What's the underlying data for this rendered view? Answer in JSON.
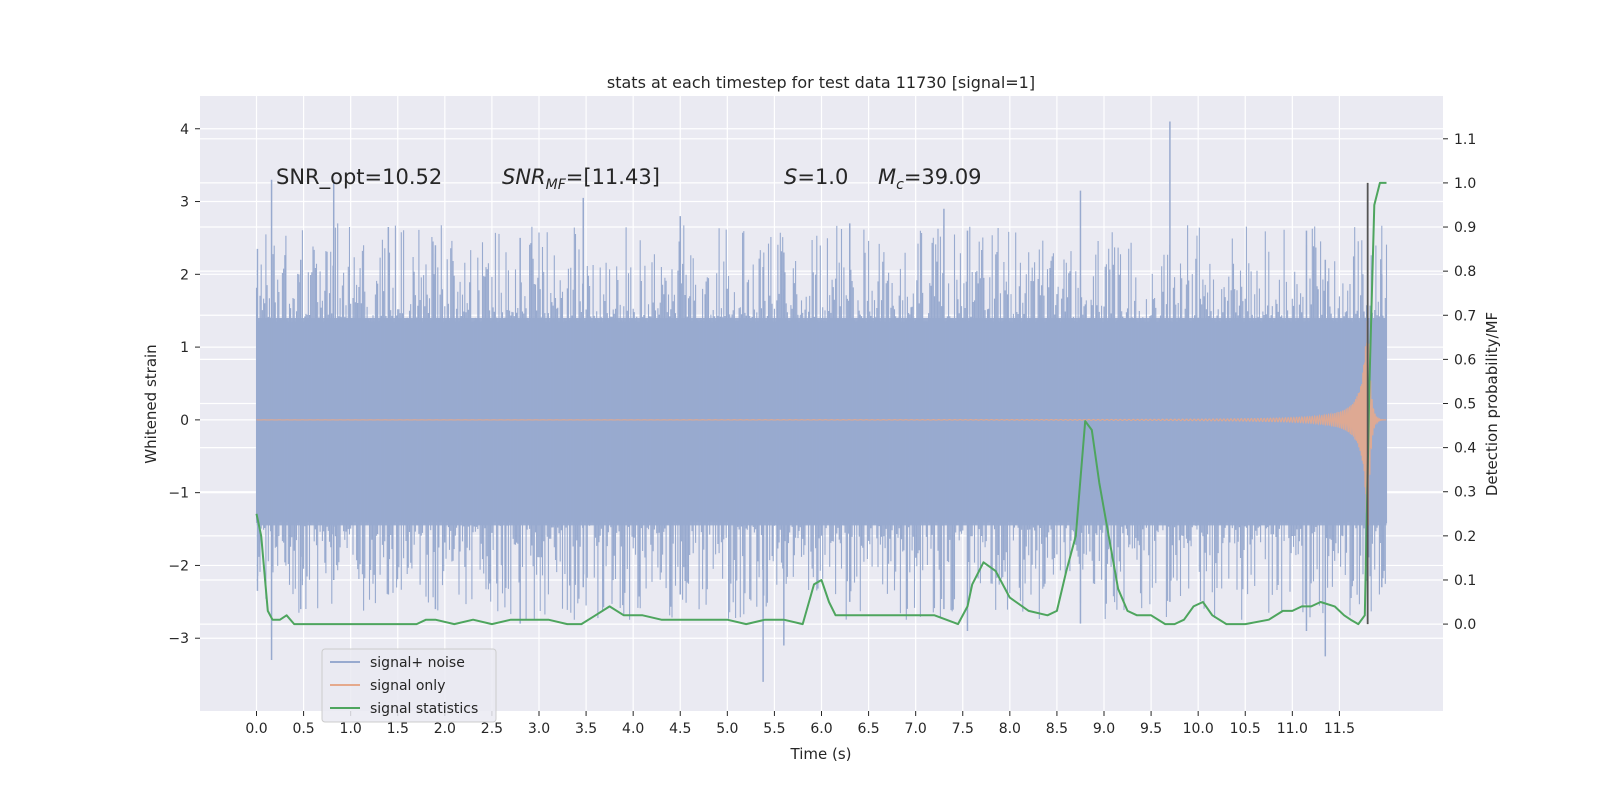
{
  "chart_data": {
    "type": "line",
    "title": "stats at each timestep for test data 11730 [signal=1]",
    "xlabel": "Time (s)",
    "ylabel_left": "Whitened strain",
    "ylabel_right": "Detection probability/MF",
    "xlim": [
      -0.6,
      12.6
    ],
    "ylim_left": [
      -4.0,
      4.45
    ],
    "ylim_right": [
      -0.197,
      1.197
    ],
    "x_ticks": [
      0.0,
      0.5,
      1.0,
      1.5,
      2.0,
      2.5,
      3.0,
      3.5,
      4.0,
      4.5,
      5.0,
      5.5,
      6.0,
      6.5,
      7.0,
      7.5,
      8.0,
      8.5,
      9.0,
      9.5,
      10.0,
      10.5,
      11.0,
      11.5
    ],
    "x_tick_labels": [
      "0.0",
      "0.5",
      "1.0",
      "1.5",
      "2.0",
      "2.5",
      "3.0",
      "3.5",
      "4.0",
      "4.5",
      "5.0",
      "5.5",
      "6.0",
      "6.5",
      "7.0",
      "7.5",
      "8.0",
      "8.5",
      "9.0",
      "9.5",
      "10.0",
      "10.5",
      "11.0",
      "11.5"
    ],
    "y_ticks_left": [
      4,
      3,
      2,
      1,
      0,
      -1,
      -2,
      -3
    ],
    "y_tick_labels_left": [
      "4",
      "3",
      "2",
      "1",
      "0",
      "−1",
      "−2",
      "−3"
    ],
    "y_ticks_right": [
      1.1,
      1.0,
      0.9,
      0.8,
      0.7,
      0.6,
      0.5,
      0.4,
      0.3,
      0.2,
      0.1,
      0.0
    ],
    "y_tick_labels_right": [
      "1.1",
      "1.0",
      "0.9",
      "0.8",
      "0.7",
      "0.6",
      "0.5",
      "0.4",
      "0.3",
      "0.2",
      "0.1",
      "0.0"
    ],
    "grid": true,
    "legend": {
      "placement": "lower-left",
      "entries": [
        {
          "label": "signal+ noise",
          "color": "#98aacf"
        },
        {
          "label": "signal only",
          "color": "#e5a98c"
        },
        {
          "label": "signal statistics",
          "color": "#4ea55e"
        }
      ]
    },
    "annotations": {
      "snr_opt": "SNR_opt=10.52",
      "snr_mf_main": "SNR",
      "snr_mf_sub": "MF",
      "snr_mf_value": "=[11.43]",
      "s_main": "S",
      "s_value": "=1.0",
      "mc_main": "M",
      "mc_sub": "c",
      "mc_value": "=39.09"
    },
    "noise_band": {
      "color": "#98aacf",
      "x_range": [
        0.0,
        12.0
      ],
      "dense_low": -1.45,
      "dense_high": 1.4,
      "spikes": [
        {
          "x": 0.01,
          "low": -2.35,
          "high": 2.35
        },
        {
          "x": 0.16,
          "low": -3.3,
          "high": 3.3
        },
        {
          "x": 0.47,
          "low": -2.6,
          "high": 2.2
        },
        {
          "x": 0.82,
          "low": -2.2,
          "high": 3.3
        },
        {
          "x": 1.4,
          "low": -2.4,
          "high": 2.65
        },
        {
          "x": 1.9,
          "low": -2.6,
          "high": 2.4
        },
        {
          "x": 2.8,
          "low": -2.8,
          "high": 2.5
        },
        {
          "x": 3.47,
          "low": -2.3,
          "high": 3.05
        },
        {
          "x": 4.5,
          "low": -2.4,
          "high": 2.8
        },
        {
          "x": 5.38,
          "low": -3.6,
          "high": 2.1
        },
        {
          "x": 5.6,
          "low": -3.1,
          "high": 2.3
        },
        {
          "x": 6.3,
          "low": -2.5,
          "high": 2.7
        },
        {
          "x": 7.3,
          "low": -2.6,
          "high": 2.9
        },
        {
          "x": 7.55,
          "low": -2.9,
          "high": 2.6
        },
        {
          "x": 8.75,
          "low": -2.8,
          "high": 3.15
        },
        {
          "x": 9.7,
          "low": -2.5,
          "high": 4.1
        },
        {
          "x": 11.15,
          "low": -2.9,
          "high": 2.6
        },
        {
          "x": 11.35,
          "low": -3.25,
          "high": 2.2
        },
        {
          "x": 11.95,
          "low": -2.3,
          "high": 2.0
        }
      ]
    },
    "signal_only": {
      "color": "#e5a98c",
      "x_range": [
        0.0,
        12.0
      ],
      "merger_time": 11.8,
      "peak_amplitude": 2.0
    },
    "signal_statistics": {
      "color": "#4ea55e",
      "x": [
        0.0,
        0.05,
        0.12,
        0.17,
        0.25,
        0.32,
        0.4,
        0.5,
        0.7,
        1.0,
        1.3,
        1.5,
        1.7,
        1.8,
        1.9,
        2.1,
        2.3,
        2.5,
        2.7,
        2.9,
        3.1,
        3.3,
        3.45,
        3.6,
        3.75,
        3.9,
        4.1,
        4.3,
        4.5,
        4.7,
        5.0,
        5.2,
        5.4,
        5.6,
        5.8,
        5.92,
        6.0,
        6.08,
        6.15,
        6.25,
        6.5,
        6.8,
        7.0,
        7.2,
        7.45,
        7.55,
        7.6,
        7.72,
        7.85,
        8.0,
        8.2,
        8.4,
        8.5,
        8.6,
        8.7,
        8.8,
        8.87,
        8.95,
        9.05,
        9.15,
        9.25,
        9.35,
        9.5,
        9.65,
        9.75,
        9.85,
        9.95,
        10.05,
        10.15,
        10.3,
        10.5,
        10.75,
        10.9,
        11.0,
        11.1,
        11.2,
        11.3,
        11.45,
        11.55,
        11.62,
        11.7,
        11.77,
        11.82,
        11.87,
        11.93,
        12.0
      ],
      "y": [
        0.25,
        0.2,
        0.03,
        0.01,
        0.01,
        0.02,
        0.0,
        0.0,
        0.0,
        0.0,
        0.0,
        0.0,
        0.0,
        0.01,
        0.01,
        0.0,
        0.01,
        0.0,
        0.01,
        0.01,
        0.01,
        0.0,
        0.0,
        0.02,
        0.04,
        0.02,
        0.02,
        0.01,
        0.01,
        0.01,
        0.01,
        0.0,
        0.01,
        0.01,
        0.0,
        0.09,
        0.1,
        0.05,
        0.02,
        0.02,
        0.02,
        0.02,
        0.02,
        0.02,
        0.0,
        0.04,
        0.09,
        0.14,
        0.12,
        0.06,
        0.03,
        0.02,
        0.03,
        0.12,
        0.2,
        0.46,
        0.44,
        0.32,
        0.2,
        0.08,
        0.03,
        0.02,
        0.02,
        0.0,
        0.0,
        0.01,
        0.04,
        0.05,
        0.02,
        0.0,
        0.0,
        0.01,
        0.03,
        0.03,
        0.04,
        0.04,
        0.05,
        0.04,
        0.02,
        0.01,
        0.0,
        0.02,
        0.55,
        0.95,
        1.0,
        1.0
      ]
    },
    "vertical_marker": {
      "x": 11.8,
      "y_top": 1.0,
      "y_bottom": 0.0,
      "color": "#555555"
    }
  }
}
